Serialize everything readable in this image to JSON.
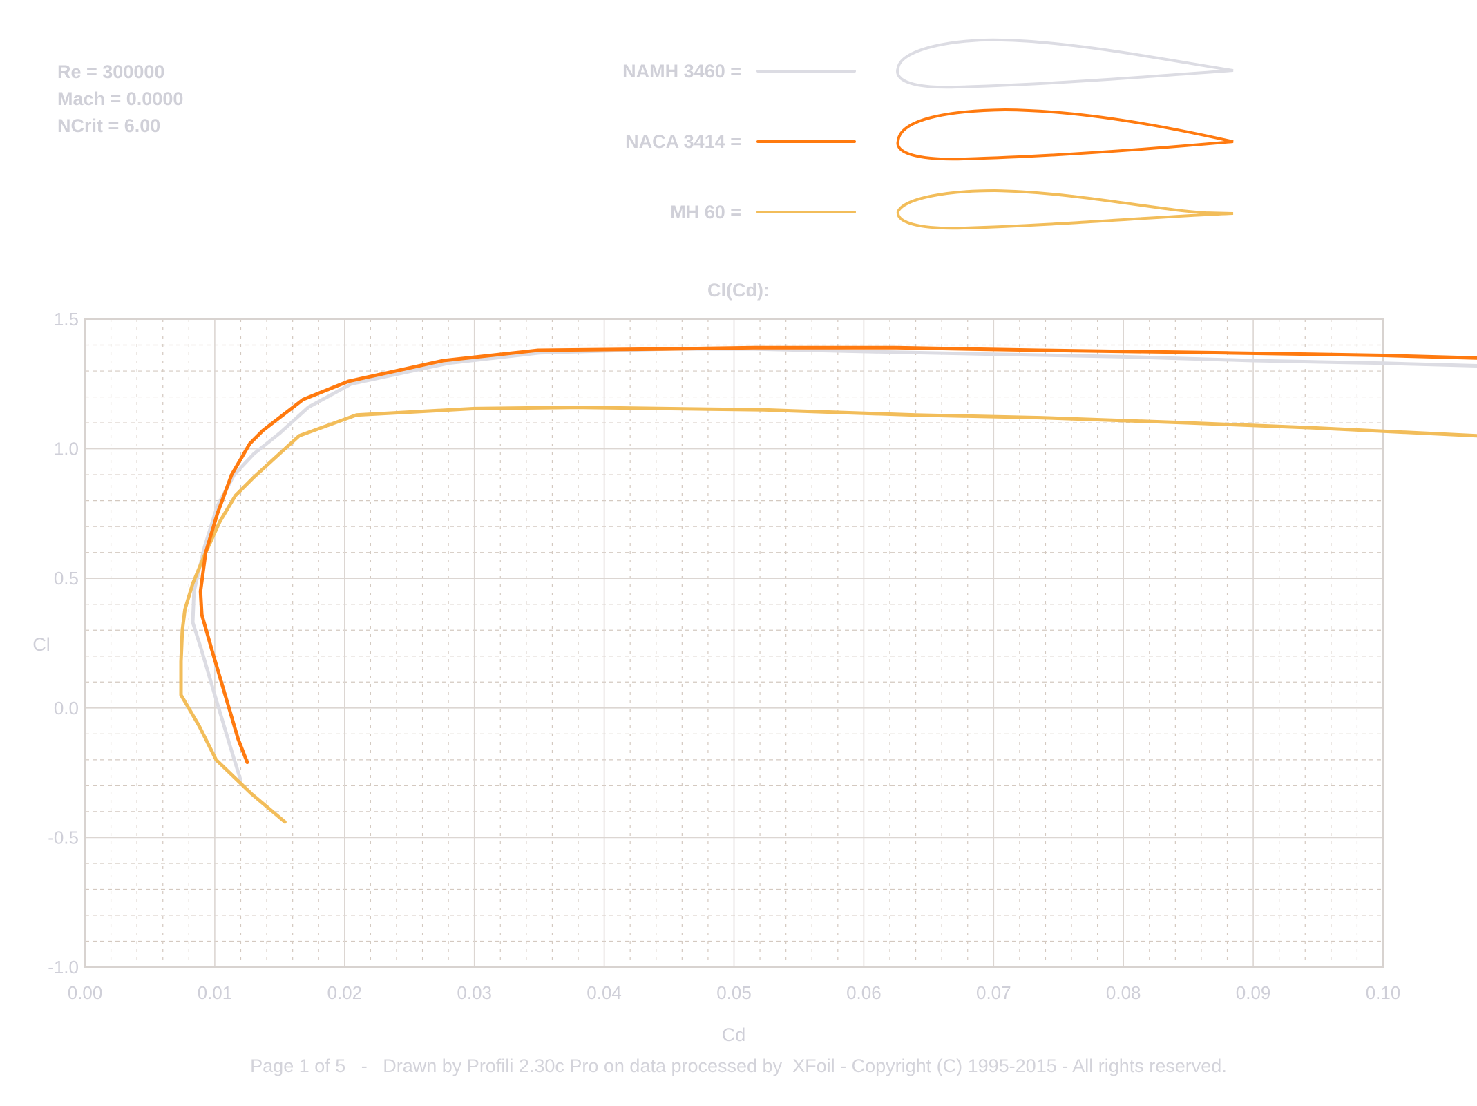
{
  "params": {
    "re": "Re = 300000",
    "mach": "Mach = 0.0000",
    "ncrit": "NCrit = 6.00"
  },
  "legend": [
    {
      "label": "NAMH 3460 =",
      "color": "#dcdce3"
    },
    {
      "label": "NACA 3414 =",
      "color": "#ff7a0f"
    },
    {
      "label": "MH 60 =",
      "color": "#f2bd5a"
    }
  ],
  "footer": "Page 1 of 5   -   Drawn by Profili 2.30c Pro on data processed by  XFoil - Copyright (C) 1995-2015 - All rights reserved.",
  "colors": {
    "grid_major": "#dcd6d2",
    "grid_minor": "#d4c9c0",
    "frame": "#d8d3d0"
  },
  "chart_data": {
    "type": "line",
    "title": "Cl(Cd):",
    "xlabel": "Cd",
    "ylabel": "Cl",
    "xlim": [
      0.0,
      0.1
    ],
    "ylim": [
      -1.0,
      1.5
    ],
    "xticks": [
      "0.00",
      "0.01",
      "0.02",
      "0.03",
      "0.04",
      "0.05",
      "0.06",
      "0.07",
      "0.08",
      "0.09",
      "0.10"
    ],
    "yticks": [
      "1.5",
      "1.0",
      "0.5",
      "0.0",
      "-0.5",
      "-1.0"
    ],
    "grid": true,
    "legend_position": "top",
    "series": [
      {
        "name": "NAMH 3460",
        "color": "#dcdce3",
        "points": [
          [
            0.012,
            -0.28
          ],
          [
            0.0112,
            -0.15
          ],
          [
            0.01,
            0.05
          ],
          [
            0.009,
            0.22
          ],
          [
            0.0083,
            0.33
          ],
          [
            0.0084,
            0.45
          ],
          [
            0.0092,
            0.62
          ],
          [
            0.0102,
            0.78
          ],
          [
            0.0115,
            0.9
          ],
          [
            0.013,
            0.98
          ],
          [
            0.015,
            1.06
          ],
          [
            0.0172,
            1.16
          ],
          [
            0.0205,
            1.25
          ],
          [
            0.028,
            1.33
          ],
          [
            0.035,
            1.37
          ],
          [
            0.045,
            1.385
          ],
          [
            0.0515,
            1.385
          ],
          [
            0.06,
            1.375
          ],
          [
            0.07,
            1.365
          ],
          [
            0.08,
            1.355
          ],
          [
            0.09,
            1.34
          ],
          [
            0.1,
            1.33
          ],
          [
            0.1072,
            1.32
          ]
        ]
      },
      {
        "name": "NACA 3414",
        "color": "#ff7a0f",
        "points": [
          [
            0.0125,
            -0.21
          ],
          [
            0.0118,
            -0.12
          ],
          [
            0.0108,
            0.05
          ],
          [
            0.0098,
            0.22
          ],
          [
            0.009,
            0.36
          ],
          [
            0.0089,
            0.45
          ],
          [
            0.0093,
            0.6
          ],
          [
            0.0102,
            0.75
          ],
          [
            0.0113,
            0.9
          ],
          [
            0.0127,
            1.02
          ],
          [
            0.0137,
            1.07
          ],
          [
            0.0168,
            1.19
          ],
          [
            0.0203,
            1.26
          ],
          [
            0.0276,
            1.34
          ],
          [
            0.0349,
            1.38
          ],
          [
            0.045,
            1.385
          ],
          [
            0.0515,
            1.39
          ],
          [
            0.0625,
            1.39
          ],
          [
            0.0735,
            1.38
          ],
          [
            0.088,
            1.37
          ],
          [
            0.1,
            1.36
          ],
          [
            0.1072,
            1.35
          ]
        ]
      },
      {
        "name": "MH 60",
        "color": "#f2bd5a",
        "points": [
          [
            0.0154,
            -0.44
          ],
          [
            0.0128,
            -0.33
          ],
          [
            0.0101,
            -0.2
          ],
          [
            0.0088,
            -0.07
          ],
          [
            0.0074,
            0.05
          ],
          [
            0.0074,
            0.18
          ],
          [
            0.0075,
            0.3
          ],
          [
            0.0077,
            0.38
          ],
          [
            0.0083,
            0.48
          ],
          [
            0.0093,
            0.6
          ],
          [
            0.0104,
            0.72
          ],
          [
            0.0116,
            0.82
          ],
          [
            0.013,
            0.89
          ],
          [
            0.0165,
            1.05
          ],
          [
            0.0209,
            1.13
          ],
          [
            0.03,
            1.155
          ],
          [
            0.0379,
            1.16
          ],
          [
            0.0523,
            1.15
          ],
          [
            0.064,
            1.13
          ],
          [
            0.0736,
            1.12
          ],
          [
            0.085,
            1.1
          ],
          [
            0.095,
            1.08
          ],
          [
            0.1072,
            1.05
          ]
        ]
      }
    ]
  }
}
